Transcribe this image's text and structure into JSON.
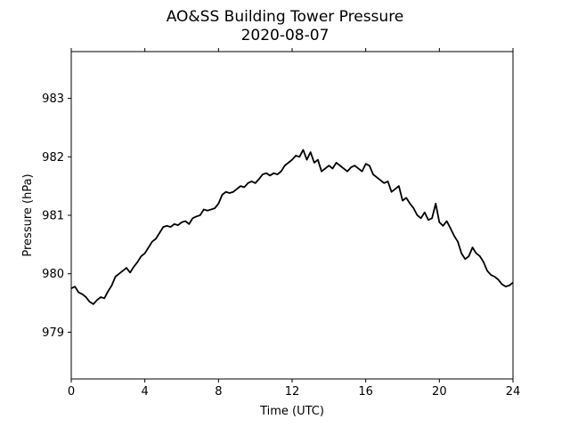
{
  "chart_data": {
    "type": "line",
    "title": "AO&SS Building Tower Pressure",
    "subtitle": "2020-08-07",
    "xlabel": "Time (UTC)",
    "ylabel": "Pressure (hPa)",
    "xlim": [
      0,
      24
    ],
    "ylim": [
      978.2,
      983.8
    ],
    "x_ticks": [
      0,
      4,
      8,
      12,
      16,
      20,
      24
    ],
    "y_ticks": [
      979,
      980,
      981,
      982,
      983
    ],
    "grid": false,
    "line_color": "#000000",
    "series": [
      {
        "x": [
          0,
          0.2,
          0.4,
          0.6,
          0.8,
          1.0,
          1.2,
          1.4,
          1.6,
          1.8,
          2.0,
          2.2,
          2.4,
          2.6,
          2.8,
          3.0,
          3.2,
          3.4,
          3.6,
          3.8,
          4.0,
          4.2,
          4.4,
          4.6,
          4.8,
          5.0,
          5.2,
          5.4,
          5.6,
          5.8,
          6.0,
          6.2,
          6.4,
          6.6,
          6.8,
          7.0,
          7.2,
          7.4,
          7.6,
          7.8,
          8.0,
          8.2,
          8.4,
          8.6,
          8.8,
          9.0,
          9.2,
          9.4,
          9.6,
          9.8,
          10.0,
          10.2,
          10.4,
          10.6,
          10.8,
          11.0,
          11.2,
          11.4,
          11.6,
          11.8,
          12.0,
          12.2,
          12.4,
          12.6,
          12.8,
          13.0,
          13.2,
          13.4,
          13.6,
          13.8,
          14.0,
          14.2,
          14.4,
          14.6,
          14.8,
          15.0,
          15.2,
          15.4,
          15.6,
          15.8,
          16.0,
          16.2,
          16.4,
          16.6,
          16.8,
          17.0,
          17.2,
          17.4,
          17.6,
          17.8,
          18.0,
          18.2,
          18.4,
          18.6,
          18.8,
          19.0,
          19.2,
          19.4,
          19.6,
          19.8,
          20.0,
          20.2,
          20.4,
          20.6,
          20.8,
          21.0,
          21.2,
          21.4,
          21.6,
          21.8,
          22.0,
          22.2,
          22.4,
          22.6,
          22.8,
          23.0,
          23.2,
          23.4,
          23.6,
          23.8,
          24.0
        ],
        "values": [
          979.75,
          979.78,
          979.68,
          979.65,
          979.6,
          979.52,
          979.48,
          979.55,
          979.6,
          979.58,
          979.7,
          979.8,
          979.95,
          980.0,
          980.05,
          980.1,
          980.02,
          980.12,
          980.2,
          980.3,
          980.35,
          980.45,
          980.55,
          980.6,
          980.7,
          980.8,
          980.82,
          980.8,
          980.85,
          980.83,
          980.88,
          980.9,
          980.85,
          980.95,
          980.98,
          981.0,
          981.1,
          981.08,
          981.1,
          981.12,
          981.2,
          981.35,
          981.4,
          981.38,
          981.4,
          981.45,
          981.5,
          981.48,
          981.55,
          981.58,
          981.55,
          981.62,
          981.7,
          981.72,
          981.68,
          981.72,
          981.7,
          981.75,
          981.85,
          981.9,
          981.95,
          982.02,
          982.0,
          982.12,
          981.95,
          982.08,
          981.9,
          981.95,
          981.75,
          981.8,
          981.85,
          981.8,
          981.9,
          981.85,
          981.8,
          981.75,
          981.82,
          981.85,
          981.8,
          981.75,
          981.88,
          981.85,
          981.7,
          981.65,
          981.6,
          981.55,
          981.58,
          981.4,
          981.45,
          981.5,
          981.25,
          981.3,
          981.2,
          981.12,
          981.0,
          980.95,
          981.05,
          980.92,
          980.95,
          981.2,
          980.88,
          980.82,
          980.9,
          980.78,
          980.65,
          980.55,
          980.35,
          980.25,
          980.3,
          980.45,
          980.35,
          980.3,
          980.2,
          980.05,
          979.98,
          979.95,
          979.9,
          979.82,
          979.78,
          979.8,
          979.85
        ]
      }
    ]
  }
}
